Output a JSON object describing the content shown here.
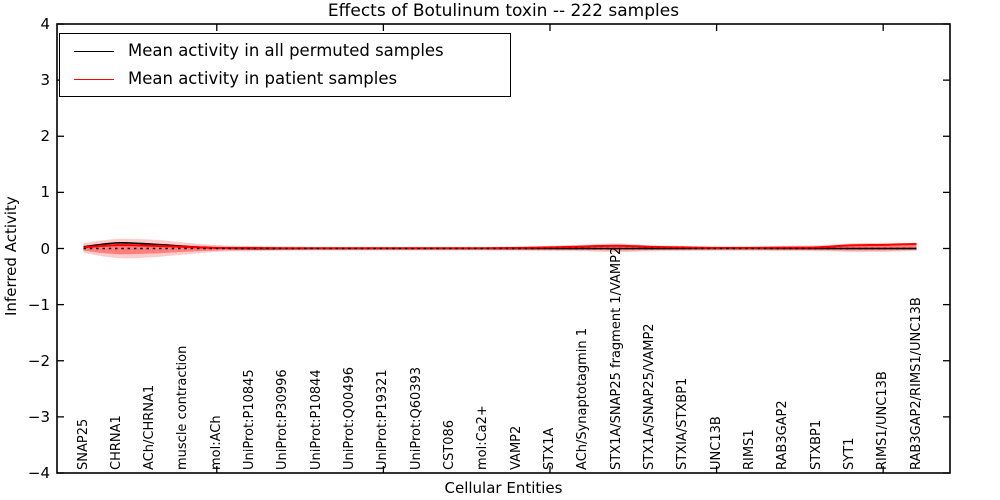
{
  "chart_data": {
    "type": "line",
    "title": "Effects of Botulinum toxin -- 222 samples",
    "xlabel": "Cellular Entities",
    "ylabel": "Inferred Activity",
    "ylim": [
      -4,
      4
    ],
    "grid": false,
    "legend_position": "upper left",
    "background_color": "#ffffff",
    "axis_color": "#000000",
    "yticks": [
      {
        "value": 4,
        "label": "4"
      },
      {
        "value": 3,
        "label": "3"
      },
      {
        "value": 2,
        "label": "2"
      },
      {
        "value": 1,
        "label": "1"
      },
      {
        "value": 0,
        "label": "0"
      },
      {
        "value": -1,
        "label": "−1"
      },
      {
        "value": -2,
        "label": "−2"
      },
      {
        "value": -3,
        "label": "−3"
      },
      {
        "value": -4,
        "label": "−4"
      }
    ],
    "xtick_major_positions": [
      5,
      10,
      15,
      20,
      25
    ],
    "categories": [
      "SNAP25",
      "CHRNA1",
      "ACh/CHRNA1",
      "muscle contraction",
      "mol:ACh",
      "UniProt:P10845",
      "UniProt:P30996",
      "UniProt:P10844",
      "UniProt:Q00496",
      "UniProt:P19321",
      "UniProt:Q60393",
      "CST086",
      "mol:Ca2+",
      "VAMP2",
      "STX1A",
      "ACh/Synaptotagmin 1",
      "STX1A/SNAP25 fragment 1/VAMP2",
      "STX1A/SNAP25/VAMP2",
      "STXIA/STXBP1",
      "UNC13B",
      "RIMS1",
      "RAB3GAP2",
      "STXBP1",
      "SYT1",
      "RIMS1/UNC13B",
      "RAB3GAP2/RIMS1/UNC13B"
    ],
    "series": [
      {
        "name": "Mean activity in all permuted samples",
        "color": "#000000",
        "style": "solid",
        "values": [
          0.03,
          0.1,
          0.08,
          0.04,
          0.01,
          0,
          0,
          0,
          0,
          0,
          0,
          0,
          0,
          0,
          0,
          0,
          0,
          0,
          0,
          0,
          0,
          0,
          0,
          0,
          0,
          0
        ]
      },
      {
        "name": "Mean activity in patient samples",
        "color": "#ff0000",
        "style": "solid",
        "values": [
          0.02,
          0.06,
          0.05,
          0.03,
          0.01,
          0.01,
          0.005,
          0.005,
          0.005,
          0.005,
          0.005,
          0.005,
          0.005,
          0.01,
          0.02,
          0.035,
          0.05,
          0.03,
          0.02,
          0.01,
          0.01,
          0.015,
          0.02,
          0.055,
          0.065,
          0.08
        ]
      }
    ],
    "zero_line": {
      "y": 0,
      "color": "#000000",
      "style": "dashed"
    },
    "band": {
      "color": "#ff0000",
      "outer_alpha": 0.2,
      "inner_alpha": 0.38,
      "outer_upper": [
        0.1,
        0.17,
        0.16,
        0.11,
        0.06,
        0.045,
        0.035,
        0.03,
        0.03,
        0.03,
        0.03,
        0.03,
        0.03,
        0.035,
        0.05,
        0.07,
        0.09,
        0.06,
        0.045,
        0.04,
        0.04,
        0.05,
        0.06,
        0.09,
        0.1,
        0.1
      ],
      "outer_lower": [
        -0.08,
        -0.17,
        -0.16,
        -0.11,
        -0.06,
        -0.05,
        -0.04,
        -0.035,
        -0.035,
        -0.035,
        -0.035,
        -0.035,
        -0.035,
        -0.04,
        -0.045,
        -0.05,
        -0.065,
        -0.05,
        -0.045,
        -0.04,
        -0.04,
        -0.045,
        -0.05,
        -0.06,
        -0.06,
        -0.045
      ],
      "inner_upper": [
        0.05,
        0.1,
        0.09,
        0.06,
        0.035,
        0.025,
        0.02,
        0.02,
        0.02,
        0.02,
        0.02,
        0.02,
        0.02,
        0.02,
        0.03,
        0.04,
        0.055,
        0.035,
        0.025,
        0.02,
        0.02,
        0.03,
        0.035,
        0.055,
        0.06,
        0.06
      ],
      "inner_lower": [
        -0.04,
        -0.1,
        -0.09,
        -0.06,
        -0.035,
        -0.03,
        -0.025,
        -0.02,
        -0.02,
        -0.02,
        -0.02,
        -0.02,
        -0.02,
        -0.025,
        -0.025,
        -0.03,
        -0.035,
        -0.03,
        -0.025,
        -0.02,
        -0.02,
        -0.025,
        -0.03,
        -0.035,
        -0.035,
        -0.025
      ]
    }
  }
}
